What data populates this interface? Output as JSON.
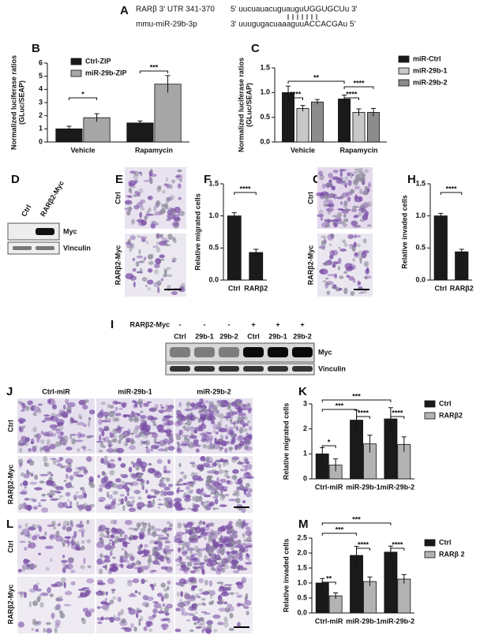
{
  "chart_data": [
    {
      "type": "bar",
      "ylabel": [
        "Normalized luciferase ratios",
        "(GLuc/SEAP)"
      ],
      "categories": [
        "Vehicle",
        "Rapamycin"
      ],
      "series": [
        {
          "name": "Ctrl-ZIP",
          "color": "#1a1a1a",
          "values": [
            1.0,
            1.45
          ],
          "errors": [
            0.2,
            0.15
          ]
        },
        {
          "name": "miR-29b-ZIP",
          "color": "#a6a6a6",
          "values": [
            1.85,
            4.4
          ],
          "errors": [
            0.3,
            0.65
          ]
        }
      ],
      "ylim": [
        0,
        6
      ],
      "yticks": [
        0,
        1,
        2,
        3,
        4,
        5,
        6
      ],
      "annotations": [
        "*",
        "***"
      ]
    },
    {
      "type": "bar",
      "ylabel": [
        "Normalized luciferase ratios",
        "(GLuc/SEAP)"
      ],
      "categories": [
        "Vehicle",
        "Rapamycin"
      ],
      "series": [
        {
          "name": "miR-Ctrl",
          "color": "#1a1a1a",
          "values": [
            1.0,
            0.87
          ],
          "errors": [
            0.13,
            0.08
          ]
        },
        {
          "name": "miR-29b-1",
          "color": "#c8c8c8",
          "values": [
            0.68,
            0.6
          ],
          "errors": [
            0.06,
            0.07
          ]
        },
        {
          "name": "miR-29b-2",
          "color": "#8c8c8c",
          "values": [
            0.81,
            0.6
          ],
          "errors": [
            0.05,
            0.08
          ]
        }
      ],
      "ylim": [
        0,
        1.5
      ],
      "yticks": [
        {
          "value": 0,
          "label": "0.0"
        },
        0.5,
        {
          "value": 1,
          "label": "1.0"
        },
        1.5
      ],
      "annotations": [
        "**",
        "****",
        "****",
        "****"
      ]
    },
    {
      "type": "bar",
      "ylabel": "Relative migrated cells",
      "categories": [
        "Ctrl",
        "RARβ2"
      ],
      "color": "#1a1a1a",
      "values": [
        1.0,
        0.43
      ],
      "errors": [
        0.05,
        0.05
      ],
      "ylim": [
        0,
        1.5
      ],
      "yticks": [
        {
          "value": 0,
          "label": "0.0"
        },
        0.5,
        {
          "value": 1,
          "label": "1.0"
        },
        1.5
      ],
      "annotations": [
        "****"
      ]
    },
    {
      "type": "bar",
      "ylabel": "Relative invaded cells",
      "categories": [
        "Ctrl",
        "RARβ2"
      ],
      "color": "#1a1a1a",
      "values": [
        1.0,
        0.44
      ],
      "errors": [
        0.04,
        0.04
      ],
      "ylim": [
        0,
        1.5
      ],
      "yticks": [
        {
          "value": 0,
          "label": "0.0"
        },
        0.5,
        {
          "value": 1,
          "label": "1.0"
        },
        1.5
      ],
      "annotations": [
        "****"
      ]
    },
    {
      "type": "bar",
      "ylabel": "Relative migrated cells",
      "categories": [
        "Ctrl-miR",
        "miR-29b-1",
        "miR-29b-2"
      ],
      "series": [
        {
          "name": "Ctrl",
          "color": "#1a1a1a",
          "values": [
            1.0,
            2.35,
            2.4
          ],
          "errors": [
            0.25,
            0.4,
            0.45
          ]
        },
        {
          "name": "RARβ2",
          "color": "#b3b3b3",
          "values": [
            0.55,
            1.4,
            1.38
          ],
          "errors": [
            0.25,
            0.35,
            0.3
          ]
        }
      ],
      "ylim": [
        0,
        3
      ],
      "yticks": [
        0,
        1,
        2,
        3
      ],
      "annotations": [
        "*",
        "****",
        "****",
        "***",
        "***"
      ]
    },
    {
      "type": "bar",
      "ylabel": "Relative invaded cells",
      "categories": [
        "Ctrl-miR",
        "miR-29b-1",
        "miR-29b-2"
      ],
      "series": [
        {
          "name": "Ctrl",
          "color": "#1a1a1a",
          "values": [
            1.0,
            1.92,
            2.03
          ],
          "errors": [
            0.15,
            0.3,
            0.2
          ]
        },
        {
          "name": "RARβ 2",
          "color": "#b3b3b3",
          "values": [
            0.57,
            1.05,
            1.13
          ],
          "errors": [
            0.1,
            0.15,
            0.15
          ]
        }
      ],
      "ylim": [
        0,
        2.5
      ],
      "yticks": [
        {
          "value": 0,
          "label": "0.0"
        },
        0.5,
        {
          "value": 1,
          "label": "1.0"
        },
        1.5,
        {
          "value": 2,
          "label": "2.0"
        },
        2.5
      ],
      "annotations": [
        "**",
        "****",
        "****",
        "***",
        "***"
      ]
    }
  ],
  "figure": {
    "panel_labels": [
      "A",
      "B",
      "C",
      "D",
      "E",
      "F",
      "G",
      "H",
      "I",
      "J",
      "K",
      "L",
      "M"
    ],
    "seq_a": {
      "line1_name": "RARβ 3' UTR 341-370",
      "line1": "5' uucuauacuguauguUGGUGCUu 3'",
      "line2_name": "mmu-miR-29b-3p",
      "line2": "3' uuugugacuaaaguuACCACGAu 5'"
    },
    "blot_d": {
      "lanes": [
        "Ctrl",
        "RARβ2-Myc"
      ],
      "bands": [
        "Myc",
        "Vinculin"
      ]
    },
    "images_e": {
      "rows": [
        "Ctrl",
        "RARβ2-Myc"
      ]
    },
    "images_g": {
      "rows": [
        "Ctrl",
        "RARβ2-Myc"
      ]
    },
    "blot_i": {
      "treatment": "RARβ2-Myc",
      "signs": [
        "-",
        "-",
        "-",
        "+",
        "+",
        "+"
      ],
      "lanes": [
        "Ctrl",
        "29b-1",
        "29b-2",
        "Ctrl",
        "29b-1",
        "29b-2"
      ],
      "bands": [
        "Myc",
        "Vinculin"
      ]
    },
    "images_j": {
      "columns": [
        "Ctrl-miR",
        "miR-29b-1",
        "miR-29b-2"
      ],
      "rows": [
        "Ctrl",
        "RARβ2-Myc"
      ]
    },
    "images_l": {
      "rows": [
        "Ctrl",
        "RARβ2-Myc"
      ]
    }
  }
}
